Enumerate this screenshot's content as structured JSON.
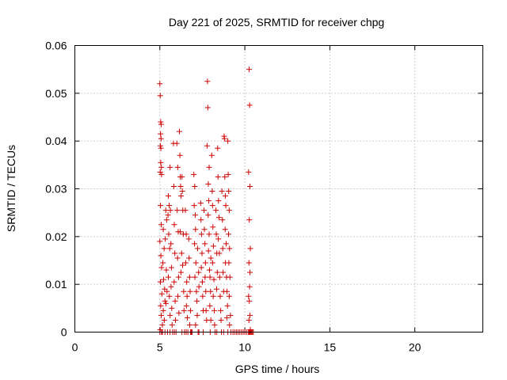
{
  "chart_data": {
    "type": "scatter",
    "title": "Day 221 of 2025, SRMTID for receiver chpg",
    "xlabel": "GPS time / hours",
    "ylabel": "SRMTID / TECUs",
    "xlim": [
      0,
      24
    ],
    "ylim": [
      0,
      0.06
    ],
    "xticks": [
      0,
      5,
      10,
      15,
      20
    ],
    "xtick_labels": [
      "0",
      "5",
      "10",
      "15",
      "20"
    ],
    "yticks": [
      0,
      0.01,
      0.02,
      0.03,
      0.04,
      0.05,
      0.06
    ],
    "ytick_labels": [
      "0",
      "0.01",
      "0.02",
      "0.03",
      "0.04",
      "0.05",
      "0.06"
    ],
    "grid": true,
    "marker": "plus",
    "color": "#cc0000",
    "series": [
      {
        "name": "SRMTID",
        "points": [
          [
            5.0,
            0.052
          ],
          [
            5.02,
            0.0495
          ],
          [
            5.05,
            0.044
          ],
          [
            5.08,
            0.0435
          ],
          [
            5.04,
            0.0415
          ],
          [
            5.07,
            0.0405
          ],
          [
            5.03,
            0.039
          ],
          [
            5.06,
            0.0385
          ],
          [
            5.05,
            0.0355
          ],
          [
            5.09,
            0.0345
          ],
          [
            5.02,
            0.0335
          ],
          [
            5.1,
            0.033
          ],
          [
            5.04,
            0.0265
          ],
          [
            5.08,
            0.0225
          ],
          [
            5.0,
            0.019
          ],
          [
            5.06,
            0.016
          ],
          [
            5.1,
            0.0135
          ],
          [
            5.03,
            0.0105
          ],
          [
            5.12,
            0.008
          ],
          [
            5.05,
            0.0055
          ],
          [
            5.08,
            0.0035
          ],
          [
            5.15,
            0.0015
          ],
          [
            5.02,
            0.0005
          ],
          [
            5.1,
            0.0
          ],
          [
            5.2,
            0.0215
          ],
          [
            5.25,
            0.0175
          ],
          [
            5.18,
            0.0145
          ],
          [
            5.22,
            0.011
          ],
          [
            5.28,
            0.009
          ],
          [
            5.3,
            0.0065
          ],
          [
            5.2,
            0.0045
          ],
          [
            5.26,
            0.0025
          ],
          [
            5.35,
            0.0255
          ],
          [
            5.4,
            0.0235
          ],
          [
            5.32,
            0.0195
          ],
          [
            5.38,
            0.013
          ],
          [
            5.42,
            0.0085
          ],
          [
            5.36,
            0.006
          ],
          [
            5.3,
            0.0
          ],
          [
            5.45,
            0.0
          ],
          [
            5.5,
            0.0285
          ],
          [
            5.55,
            0.0265
          ],
          [
            5.48,
            0.0245
          ],
          [
            5.52,
            0.0205
          ],
          [
            5.58,
            0.0175
          ],
          [
            5.5,
            0.0115
          ],
          [
            5.56,
            0.0075
          ],
          [
            5.6,
            0.0035
          ],
          [
            5.6,
            0.0345
          ],
          [
            5.62,
            0.0255
          ],
          [
            5.65,
            0.0185
          ],
          [
            5.68,
            0.0135
          ],
          [
            5.66,
            0.0095
          ],
          [
            5.7,
            0.005
          ],
          [
            5.72,
            0.0015
          ],
          [
            5.75,
            0.0
          ],
          [
            5.8,
            0.0395
          ],
          [
            5.82,
            0.0305
          ],
          [
            5.85,
            0.0225
          ],
          [
            5.88,
            0.0165
          ],
          [
            5.84,
            0.0105
          ],
          [
            5.9,
            0.0065
          ],
          [
            5.92,
            0.0025
          ],
          [
            5.95,
            0.0
          ],
          [
            6.0,
            0.0395
          ],
          [
            6.05,
            0.0345
          ],
          [
            6.02,
            0.0255
          ],
          [
            6.08,
            0.021
          ],
          [
            6.04,
            0.0155
          ],
          [
            6.1,
            0.0115
          ],
          [
            6.06,
            0.0075
          ],
          [
            6.12,
            0.004
          ],
          [
            6.15,
            0.042
          ],
          [
            6.18,
            0.037
          ],
          [
            6.2,
            0.0325
          ],
          [
            6.22,
            0.0305
          ],
          [
            6.25,
            0.0285
          ],
          [
            6.2,
            0.021
          ],
          [
            6.28,
            0.0165
          ],
          [
            6.24,
            0.0125
          ],
          [
            6.3,
            0.0325
          ],
          [
            6.32,
            0.0295
          ],
          [
            6.35,
            0.0255
          ],
          [
            6.38,
            0.0205
          ],
          [
            6.34,
            0.014
          ],
          [
            6.4,
            0.0085
          ],
          [
            6.42,
            0.0045
          ],
          [
            6.45,
            0.0
          ],
          [
            6.5,
            0.0255
          ],
          [
            6.55,
            0.0205
          ],
          [
            6.52,
            0.0145
          ],
          [
            6.58,
            0.0105
          ],
          [
            6.6,
            0.0075
          ],
          [
            6.56,
            0.0055
          ],
          [
            6.62,
            0.003
          ],
          [
            6.65,
            0.0
          ],
          [
            6.7,
            0.0195
          ],
          [
            6.72,
            0.0155
          ],
          [
            6.75,
            0.0115
          ],
          [
            6.78,
            0.0085
          ],
          [
            6.8,
            0.0045
          ],
          [
            6.76,
            0.0015
          ],
          [
            6.85,
            0.0
          ],
          [
            6.9,
            0.0
          ],
          [
            7.0,
            0.033
          ],
          [
            7.05,
            0.0305
          ],
          [
            7.02,
            0.0265
          ],
          [
            7.08,
            0.0245
          ],
          [
            7.1,
            0.0215
          ],
          [
            7.04,
            0.0185
          ],
          [
            7.12,
            0.0145
          ],
          [
            7.06,
            0.0115
          ],
          [
            7.15,
            0.0085
          ],
          [
            7.18,
            0.0065
          ],
          [
            7.2,
            0.0035
          ],
          [
            7.1,
            0.0015
          ],
          [
            7.25,
            0.0
          ],
          [
            7.22,
            0.0175
          ],
          [
            7.28,
            0.0125
          ],
          [
            7.3,
            0.0095
          ],
          [
            7.4,
            0.027
          ],
          [
            7.42,
            0.0235
          ],
          [
            7.45,
            0.0205
          ],
          [
            7.48,
            0.0165
          ],
          [
            7.44,
            0.0135
          ],
          [
            7.5,
            0.0105
          ],
          [
            7.52,
            0.0075
          ],
          [
            7.55,
            0.0045
          ],
          [
            7.6,
            0.0255
          ],
          [
            7.62,
            0.0215
          ],
          [
            7.65,
            0.0185
          ],
          [
            7.68,
            0.0145
          ],
          [
            7.66,
            0.0115
          ],
          [
            7.7,
            0.0085
          ],
          [
            7.72,
            0.0045
          ],
          [
            7.75,
            0.0025
          ],
          [
            7.8,
            0.0525
          ],
          [
            7.82,
            0.047
          ],
          [
            7.78,
            0.039
          ],
          [
            7.85,
            0.031
          ],
          [
            7.88,
            0.0275
          ],
          [
            7.84,
            0.0245
          ],
          [
            7.9,
            0.0205
          ],
          [
            7.86,
            0.017
          ],
          [
            7.92,
            0.013
          ],
          [
            7.95,
            0.0115
          ],
          [
            7.98,
            0.0085
          ],
          [
            7.94,
            0.0055
          ],
          [
            8.0,
            0.0025
          ],
          [
            7.96,
            0.0
          ],
          [
            7.9,
            0.0345
          ],
          [
            8.0,
            0.0155
          ],
          [
            8.05,
            0.037
          ],
          [
            8.08,
            0.0295
          ],
          [
            8.1,
            0.0265
          ],
          [
            8.12,
            0.022
          ],
          [
            8.15,
            0.018
          ],
          [
            8.1,
            0.0145
          ],
          [
            8.18,
            0.011
          ],
          [
            8.14,
            0.0075
          ],
          [
            8.2,
            0.0045
          ],
          [
            8.22,
            0.0015
          ],
          [
            8.25,
            0.0
          ],
          [
            8.3,
            0.0255
          ],
          [
            8.32,
            0.0205
          ],
          [
            8.35,
            0.0165
          ],
          [
            8.38,
            0.0125
          ],
          [
            8.34,
            0.009
          ],
          [
            8.4,
            0.0385
          ],
          [
            8.42,
            0.0325
          ],
          [
            8.45,
            0.0275
          ],
          [
            8.48,
            0.024
          ],
          [
            8.44,
            0.0195
          ],
          [
            8.5,
            0.0165
          ],
          [
            8.52,
            0.0115
          ],
          [
            8.55,
            0.0075
          ],
          [
            8.58,
            0.0045
          ],
          [
            8.6,
            0.0025
          ],
          [
            8.62,
            0.0
          ],
          [
            8.65,
            0.0295
          ],
          [
            8.68,
            0.0235
          ],
          [
            8.7,
            0.0175
          ],
          [
            8.72,
            0.0125
          ],
          [
            8.75,
            0.0085
          ],
          [
            8.78,
            0.041
          ],
          [
            8.8,
            0.0405
          ],
          [
            8.82,
            0.0325
          ],
          [
            8.85,
            0.0285
          ],
          [
            8.88,
            0.0265
          ],
          [
            8.84,
            0.0215
          ],
          [
            8.9,
            0.0185
          ],
          [
            8.86,
            0.0145
          ],
          [
            8.92,
            0.0115
          ],
          [
            8.95,
            0.0085
          ],
          [
            8.98,
            0.0055
          ],
          [
            8.94,
            0.003
          ],
          [
            9.0,
            0.04
          ],
          [
            9.02,
            0.033
          ],
          [
            9.05,
            0.0295
          ],
          [
            9.08,
            0.0255
          ],
          [
            9.04,
            0.0205
          ],
          [
            9.1,
            0.0175
          ],
          [
            9.06,
            0.0145
          ],
          [
            9.12,
            0.0115
          ],
          [
            9.08,
            0.0075
          ],
          [
            9.15,
            0.0035
          ],
          [
            9.1,
            0.0015
          ],
          [
            9.18,
            0.0
          ],
          [
            9.3,
            0.0
          ],
          [
            9.4,
            0.0
          ],
          [
            9.5,
            0.0
          ],
          [
            9.6,
            0.0
          ],
          [
            9.7,
            0.0
          ],
          [
            9.8,
            0.0
          ],
          [
            9.9,
            0.0
          ],
          [
            10.0,
            0.0
          ],
          [
            10.1,
            0.0
          ],
          [
            10.2,
            0.0
          ],
          [
            10.25,
            0.0
          ],
          [
            10.3,
            0.0
          ],
          [
            10.35,
            0.0
          ],
          [
            10.4,
            0.0
          ],
          [
            10.45,
            0.0
          ],
          [
            10.5,
            0.0
          ],
          [
            10.25,
            0.055
          ],
          [
            10.28,
            0.0475
          ],
          [
            10.22,
            0.0335
          ],
          [
            10.3,
            0.0305
          ],
          [
            10.26,
            0.0235
          ],
          [
            10.32,
            0.0175
          ],
          [
            10.24,
            0.0145
          ],
          [
            10.3,
            0.0125
          ],
          [
            10.28,
            0.0095
          ],
          [
            10.22,
            0.0075
          ],
          [
            10.26,
            0.0065
          ],
          [
            10.3,
            0.0035
          ],
          [
            10.24,
            0.0025
          ],
          [
            10.32,
            0.0005
          ],
          [
            5.0,
            0.0
          ],
          [
            5.15,
            0.0
          ],
          [
            5.6,
            0.0
          ],
          [
            5.85,
            0.0
          ],
          [
            6.3,
            0.0
          ],
          [
            6.55,
            0.0
          ],
          [
            6.8,
            0.0
          ],
          [
            7.3,
            0.0
          ],
          [
            7.55,
            0.0
          ],
          [
            8.35,
            0.0
          ],
          [
            8.75,
            0.0
          ],
          [
            9.0,
            0.0
          ]
        ]
      }
    ]
  }
}
